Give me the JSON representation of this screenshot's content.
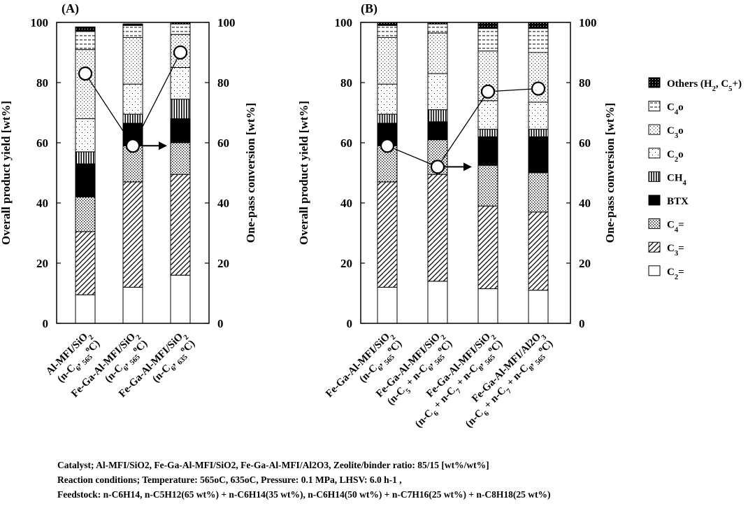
{
  "chart_data": {
    "type": "bar",
    "stacked": true,
    "ylabel": "Overall product yield [wt%]",
    "y2label": "One-pass conversion [wt%]",
    "ylim": [
      0,
      100
    ],
    "y2lim": [
      0,
      100
    ],
    "yticks": [
      "0",
      "20",
      "40",
      "60",
      "80",
      "100"
    ],
    "grid": false,
    "legend_position": "right",
    "legend": [
      {
        "key": "others",
        "label": "Others (H2, C5+)"
      },
      {
        "key": "c4o",
        "label": "C4o"
      },
      {
        "key": "c3o",
        "label": "C3o"
      },
      {
        "key": "c2o",
        "label": "C2o"
      },
      {
        "key": "ch4",
        "label": "CH4"
      },
      {
        "key": "btx",
        "label": "BTX"
      },
      {
        "key": "c4e",
        "label": "C4="
      },
      {
        "key": "c3e",
        "label": "C3="
      },
      {
        "key": "c2e",
        "label": "C2="
      }
    ],
    "component_order": [
      "c2e",
      "c3e",
      "c4e",
      "btx",
      "ch4",
      "c2o",
      "c3o",
      "c4o",
      "others"
    ],
    "panels": [
      {
        "title": "(A)",
        "categories": [
          [
            "Al-MFI/SiO2",
            "(n-C6, 565oC)"
          ],
          [
            "Fe-Ga-Al-MFI/SiO2",
            "(n-C6, 565oC)"
          ],
          [
            "Fe-Ga-Al-MFI/SiO2",
            "(n-C6, 635oC)"
          ]
        ],
        "stacks": [
          {
            "c2e": 9.5,
            "c3e": 21.0,
            "c4e": 11.5,
            "btx": 11.0,
            "ch4": 4.0,
            "c2o": 11.0,
            "c3o": 23.0,
            "c4o": 6.0,
            "others": 1.5
          },
          {
            "c2e": 12.0,
            "c3e": 35.0,
            "c4e": 12.0,
            "btx": 7.5,
            "ch4": 3.0,
            "c2o": 10.0,
            "c3o": 15.5,
            "c4o": 4.0,
            "others": 0.5
          },
          {
            "c2e": 16.0,
            "c3e": 33.5,
            "c4e": 10.5,
            "btx": 8.0,
            "ch4": 6.5,
            "c2o": 10.5,
            "c3o": 11.0,
            "c4o": 3.5,
            "others": 0.5
          }
        ],
        "conversion": [
          83,
          59,
          90
        ],
        "arrow_from_index": 1
      },
      {
        "title": "(B)",
        "categories": [
          [
            "Fe-Ga-Al-MFI/SiO2",
            "(n-C6, 565oC)"
          ],
          [
            "Fe-Ga-Al-MFI/SiO2",
            "(n-C5 + n-C6, 565oC)"
          ],
          [
            "Fe-Ga-Al-MFI/SiO2",
            "(n-C6 + n-C7 + n-C8, 565oC)"
          ],
          [
            "Fe-Ga-Al-MFI/Al2O3",
            "(n-C6 + n-C7 + n-C8, 565oC)"
          ]
        ],
        "stacks": [
          {
            "c2e": 12.0,
            "c3e": 35.0,
            "c4e": 12.0,
            "btx": 7.5,
            "ch4": 3.0,
            "c2o": 10.0,
            "c3o": 15.5,
            "c4o": 4.0,
            "others": 1.0
          },
          {
            "c2e": 14.0,
            "c3e": 35.5,
            "c4e": 11.5,
            "btx": 6.0,
            "ch4": 4.0,
            "c2o": 12.0,
            "c3o": 13.5,
            "c4o": 3.0,
            "others": 0.5
          },
          {
            "c2e": 11.5,
            "c3e": 27.5,
            "c4e": 13.5,
            "btx": 9.5,
            "ch4": 2.5,
            "c2o": 9.5,
            "c3o": 16.5,
            "c4o": 7.5,
            "others": 2.0
          },
          {
            "c2e": 11.0,
            "c3e": 26.0,
            "c4e": 13.0,
            "btx": 12.0,
            "ch4": 2.5,
            "c2o": 9.0,
            "c3o": 16.5,
            "c4o": 8.0,
            "others": 2.0
          }
        ],
        "conversion": [
          59,
          52,
          77,
          78
        ],
        "arrow_from_index": 1
      }
    ]
  },
  "caption": {
    "line1": "Catalyst; Al-MFI/SiO2, Fe-Ga-Al-MFI/SiO2, Fe-Ga-Al-MFI/Al2O3, Zeolite/binder ratio: 85/15 [wt%/wt%]",
    "line2": "Reaction conditions; Temperature: 565oC, 635oC, Pressure: 0.1 MPa, LHSV: 6.0 h-1 ,",
    "line3": "Feedstock: n-C6H14, n-C5H12(65 wt%) + n-C6H14(35 wt%), n-C6H14(50 wt%) + n-C7H16(25 wt%) + n-C8H18(25 wt%)"
  }
}
